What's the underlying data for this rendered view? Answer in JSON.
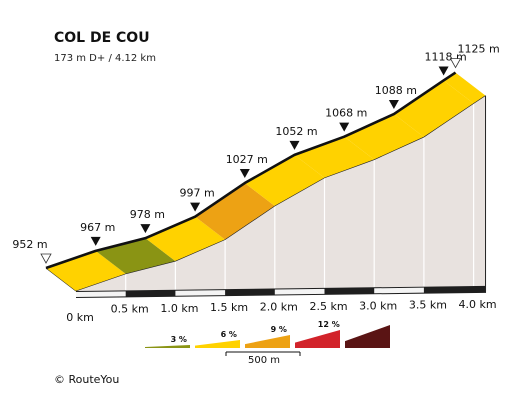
{
  "chart_data": {
    "type": "area",
    "title": "COL DE COU",
    "subtitle": "173 m D+ / 4.12 km",
    "x_unit": "km",
    "y_unit": "m",
    "points": [
      {
        "x": 0.0,
        "y": 952,
        "label": "952 m",
        "marker": "start"
      },
      {
        "x": 0.5,
        "y": 967,
        "label": "967 m",
        "marker": "arrow"
      },
      {
        "x": 1.0,
        "y": 978,
        "label": "978 m",
        "marker": "arrow"
      },
      {
        "x": 1.5,
        "y": 997,
        "label": "997 m",
        "marker": "arrow"
      },
      {
        "x": 2.0,
        "y": 1027,
        "label": "1027 m",
        "marker": "arrow"
      },
      {
        "x": 2.5,
        "y": 1052,
        "label": "1052 m",
        "marker": "arrow"
      },
      {
        "x": 3.0,
        "y": 1068,
        "label": "1068 m",
        "marker": "arrow"
      },
      {
        "x": 3.5,
        "y": 1088,
        "label": "1088 m",
        "marker": "arrow"
      },
      {
        "x": 4.0,
        "y": 1118,
        "label": "1118 m",
        "marker": "arrow"
      },
      {
        "x": 4.12,
        "y": 1125,
        "label": "1125 m",
        "marker": "end"
      }
    ],
    "segments": [
      {
        "from": 0.0,
        "to": 0.5,
        "color": "#ffd200"
      },
      {
        "from": 0.5,
        "to": 1.0,
        "color": "#8a9414"
      },
      {
        "from": 1.0,
        "to": 1.5,
        "color": "#ffd200"
      },
      {
        "from": 1.5,
        "to": 2.0,
        "color": "#eda214"
      },
      {
        "from": 2.0,
        "to": 2.5,
        "color": "#ffd200"
      },
      {
        "from": 2.5,
        "to": 3.0,
        "color": "#ffd200"
      },
      {
        "from": 3.0,
        "to": 3.5,
        "color": "#ffd200"
      },
      {
        "from": 3.5,
        "to": 4.0,
        "color": "#ffd200"
      },
      {
        "from": 4.0,
        "to": 4.12,
        "color": "#ffd200"
      }
    ],
    "x_ticks": [
      "0 km",
      "0.5 km",
      "1.0 km",
      "1.5 km",
      "2.0 km",
      "2.5 km",
      "3.0 km",
      "3.5 km",
      "4.0 km"
    ],
    "legend": [
      {
        "label": "3 %",
        "color": "#8a9414"
      },
      {
        "label": "6 %",
        "color": "#ffd200"
      },
      {
        "label": "9 %",
        "color": "#eda214"
      },
      {
        "label": "12 %",
        "color": "#d2232a"
      },
      {
        "label": "",
        "color": "#5a1414"
      }
    ],
    "scale_label": "500 m",
    "colors": {
      "side_face": "#e8e2df",
      "base_band": "#1e1e1e",
      "base_bottom": "#d8d4d2"
    }
  },
  "credit": "©  RouteYou"
}
